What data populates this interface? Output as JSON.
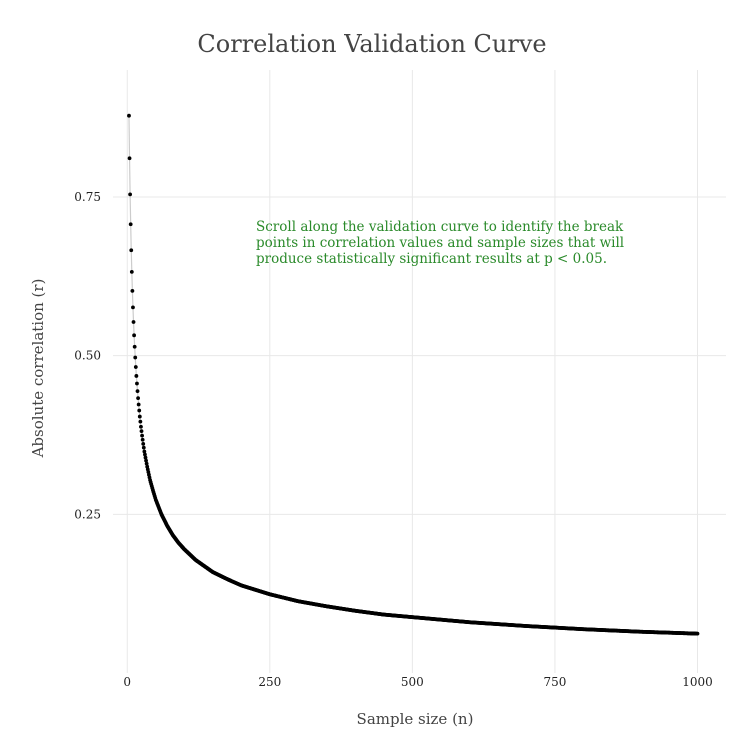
{
  "chart_data": {
    "type": "scatter",
    "title": "Correlation Validation Curve",
    "xlabel": "Sample size (n)",
    "ylabel": "Absolute correlation (r)",
    "xlim": [
      -25,
      1050
    ],
    "ylim": [
      0,
      0.95
    ],
    "xticks": [
      0,
      250,
      500,
      750,
      1000
    ],
    "xtick_labels": [
      "0",
      "250",
      "500",
      "750",
      "1000"
    ],
    "yticks": [
      0.25,
      0.5,
      0.75
    ],
    "ytick_labels": [
      "0.25",
      "0.50",
      "0.75"
    ],
    "grid": true,
    "legend": "none",
    "series": [
      {
        "marker_color": "#000000",
        "line_color": "#cccccc",
        "points": [
          [
            3,
            0.878
          ],
          [
            4,
            0.811
          ],
          [
            5,
            0.754
          ],
          [
            6,
            0.707
          ],
          [
            7,
            0.666
          ],
          [
            8,
            0.632
          ],
          [
            9,
            0.602
          ],
          [
            10,
            0.576
          ],
          [
            11,
            0.553
          ],
          [
            12,
            0.532
          ],
          [
            13,
            0.514
          ],
          [
            14,
            0.497
          ],
          [
            15,
            0.482
          ],
          [
            16,
            0.468
          ],
          [
            17,
            0.456
          ],
          [
            18,
            0.444
          ],
          [
            19,
            0.433
          ],
          [
            20,
            0.423
          ],
          [
            22,
            0.404
          ],
          [
            24,
            0.388
          ],
          [
            26,
            0.374
          ],
          [
            28,
            0.361
          ],
          [
            30,
            0.349
          ],
          [
            35,
            0.325
          ],
          [
            40,
            0.304
          ],
          [
            45,
            0.288
          ],
          [
            50,
            0.273
          ],
          [
            60,
            0.25
          ],
          [
            70,
            0.232
          ],
          [
            80,
            0.217
          ],
          [
            90,
            0.205
          ],
          [
            100,
            0.195
          ],
          [
            120,
            0.178
          ],
          [
            150,
            0.159
          ],
          [
            175,
            0.148
          ],
          [
            200,
            0.138
          ],
          [
            250,
            0.124
          ],
          [
            300,
            0.113
          ],
          [
            350,
            0.105
          ],
          [
            400,
            0.098
          ],
          [
            450,
            0.092
          ],
          [
            500,
            0.088
          ],
          [
            600,
            0.08
          ],
          [
            700,
            0.074
          ],
          [
            800,
            0.069
          ],
          [
            900,
            0.065
          ],
          [
            1000,
            0.062
          ]
        ]
      }
    ],
    "annotations": [
      {
        "lines": [
          "Scroll along the validation curve to identify the break",
          "points in correlation values and sample sizes that will",
          "produce statistically significant results at p < 0.05."
        ],
        "color": "#2a8a2a"
      }
    ]
  }
}
